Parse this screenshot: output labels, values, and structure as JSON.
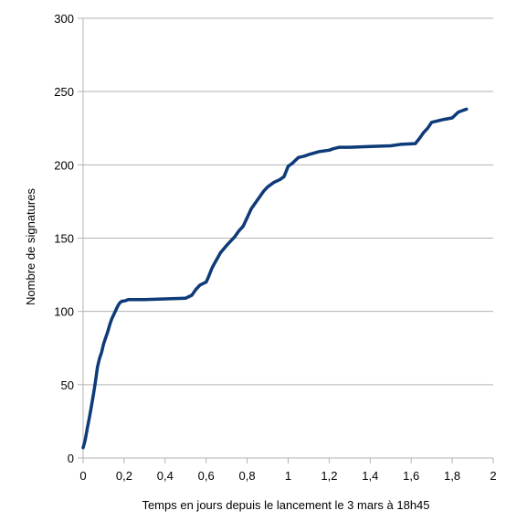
{
  "chart_data": {
    "type": "line",
    "title": "",
    "xlabel": "Temps en jours depuis le lancement le 3 mars à 18h45",
    "ylabel": "Nombre de signatures",
    "xlim": [
      0,
      2
    ],
    "ylim": [
      0,
      300
    ],
    "x_ticks": [
      0,
      0.2,
      0.4,
      0.6,
      0.8,
      1,
      1.2,
      1.4,
      1.6,
      1.8,
      2
    ],
    "x_tick_labels": [
      "0",
      "0,2",
      "0,4",
      "0,6",
      "0,8",
      "1",
      "1,2",
      "1,4",
      "1,6",
      "1,8",
      "2"
    ],
    "y_ticks": [
      0,
      50,
      100,
      150,
      200,
      250,
      300
    ],
    "y_tick_labels": [
      "0",
      "50",
      "100",
      "150",
      "200",
      "250",
      "300"
    ],
    "grid": "horizontal",
    "legend": "none",
    "line_color": "#0d3a78",
    "series": [
      {
        "x": [
          0.0,
          0.01,
          0.02,
          0.03,
          0.04,
          0.05,
          0.06,
          0.07,
          0.08,
          0.09,
          0.1,
          0.11,
          0.12,
          0.13,
          0.14,
          0.15,
          0.16,
          0.17,
          0.18,
          0.19,
          0.2,
          0.22,
          0.25,
          0.3,
          0.4,
          0.5,
          0.53,
          0.55,
          0.57,
          0.6,
          0.61,
          0.63,
          0.65,
          0.67,
          0.7,
          0.72,
          0.74,
          0.76,
          0.78,
          0.8,
          0.82,
          0.84,
          0.86,
          0.88,
          0.9,
          0.93,
          0.96,
          0.98,
          1.0,
          1.02,
          1.05,
          1.08,
          1.1,
          1.15,
          1.2,
          1.22,
          1.25,
          1.3,
          1.4,
          1.5,
          1.55,
          1.62,
          1.64,
          1.66,
          1.68,
          1.7,
          1.73,
          1.76,
          1.8,
          1.83,
          1.85,
          1.87
        ],
        "values": [
          7,
          12,
          20,
          27,
          35,
          43,
          52,
          62,
          68,
          72,
          78,
          82,
          86,
          91,
          95,
          98,
          101,
          104,
          106,
          107,
          107,
          108,
          108,
          108,
          108.5,
          109,
          111,
          115,
          118,
          120,
          123,
          130,
          135,
          140,
          145,
          148,
          151,
          155,
          158,
          164,
          170,
          174,
          178,
          182,
          185,
          188,
          190,
          192,
          199,
          201,
          205,
          206,
          207,
          209,
          210,
          211,
          212,
          212,
          212.5,
          213,
          214,
          214.5,
          218,
          222,
          225,
          229,
          230,
          231,
          232,
          236,
          237,
          238
        ]
      }
    ]
  }
}
